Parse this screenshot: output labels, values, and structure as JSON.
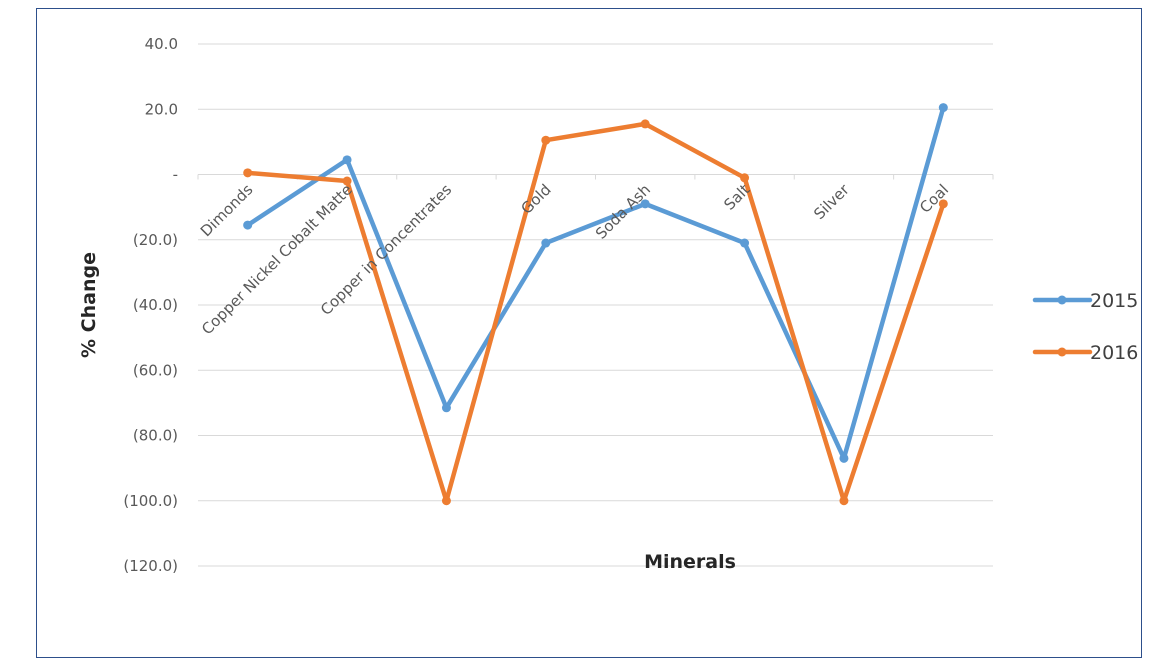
{
  "chart_data": {
    "type": "line",
    "title": "",
    "xlabel": "Minerals",
    "ylabel": "% Change",
    "ylim": [
      -120,
      40
    ],
    "yticks": [
      40,
      20,
      0,
      -20,
      -40,
      -60,
      -80,
      -100,
      -120
    ],
    "ytick_labels": [
      "40.0",
      "20.0",
      "-",
      "(20.0)",
      "(40.0)",
      "(60.0)",
      "(80.0)",
      "(100.0)",
      "(120.0)"
    ],
    "categories": [
      "Dimonds",
      "Copper Nickel Cobalt Matte",
      "Copper in Concentrates",
      "Gold",
      "Soda Ash",
      "Salt",
      "Silver",
      "Coal"
    ],
    "grid": true,
    "legend_position": "right",
    "series": [
      {
        "name": "2015",
        "color": "#5b9bd5",
        "values": [
          -15.5,
          4.5,
          -71.5,
          -21,
          -9,
          -21,
          -87,
          20.5
        ]
      },
      {
        "name": "2016",
        "color": "#ed7d31",
        "values": [
          0.5,
          -2,
          -100,
          10.5,
          15.5,
          -1,
          -100,
          -9
        ]
      }
    ]
  }
}
